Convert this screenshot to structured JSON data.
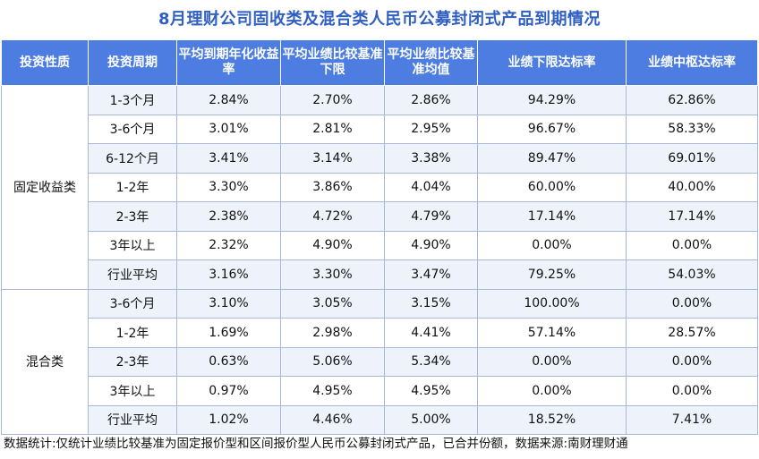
{
  "title": "8月理财公司固收类及混合类人民币公募封闭式产品到期情况",
  "headers": [
    "投资性质",
    "投资周期",
    "平均到期年化收益率",
    "平均业绩比较基准下限",
    "平均业绩比较基准均值",
    "业绩下限达标率",
    "业绩中枢达标率"
  ],
  "groups": [
    {
      "name": "固定收益类",
      "rows": [
        {
          "period": "1-3个月",
          "yield": "2.84%",
          "low": "2.70%",
          "mid": "2.86%",
          "low_rate": "94.29%",
          "mid_rate": "62.86%"
        },
        {
          "period": "3-6个月",
          "yield": "3.01%",
          "low": "2.81%",
          "mid": "2.95%",
          "low_rate": "96.67%",
          "mid_rate": "58.33%"
        },
        {
          "period": "6-12个月",
          "yield": "3.41%",
          "low": "3.14%",
          "mid": "3.38%",
          "low_rate": "89.47%",
          "mid_rate": "69.01%"
        },
        {
          "period": "1-2年",
          "yield": "3.30%",
          "low": "3.86%",
          "mid": "4.04%",
          "low_rate": "60.00%",
          "mid_rate": "40.00%"
        },
        {
          "period": "2-3年",
          "yield": "2.38%",
          "low": "4.72%",
          "mid": "4.79%",
          "low_rate": "17.14%",
          "mid_rate": "17.14%"
        },
        {
          "period": "3年以上",
          "yield": "2.32%",
          "low": "4.90%",
          "mid": "4.90%",
          "low_rate": "0.00%",
          "mid_rate": "0.00%"
        },
        {
          "period": "行业平均",
          "yield": "3.16%",
          "low": "3.30%",
          "mid": "3.47%",
          "low_rate": "79.25%",
          "mid_rate": "54.03%"
        }
      ]
    },
    {
      "name": "混合类",
      "rows": [
        {
          "period": "3-6个月",
          "yield": "3.10%",
          "low": "3.05%",
          "mid": "3.15%",
          "low_rate": "100.00%",
          "mid_rate": "0.00%"
        },
        {
          "period": "1-2年",
          "yield": "1.69%",
          "low": "2.98%",
          "mid": "4.41%",
          "low_rate": "57.14%",
          "mid_rate": "28.57%"
        },
        {
          "period": "2-3年",
          "yield": "0.63%",
          "low": "5.06%",
          "mid": "5.34%",
          "low_rate": "0.00%",
          "mid_rate": "0.00%"
        },
        {
          "period": "3年以上",
          "yield": "0.97%",
          "low": "4.95%",
          "mid": "4.95%",
          "low_rate": "0.00%",
          "mid_rate": "0.00%"
        },
        {
          "period": "行业平均",
          "yield": "1.02%",
          "low": "4.46%",
          "mid": "5.00%",
          "low_rate": "18.52%",
          "mid_rate": "7.41%"
        }
      ]
    }
  ],
  "footnote": "数据统计:仅统计业绩比较基准为固定报价型和区间报价型人民币公募封闭式产品，已合并份额，数据来源:南财理财通"
}
